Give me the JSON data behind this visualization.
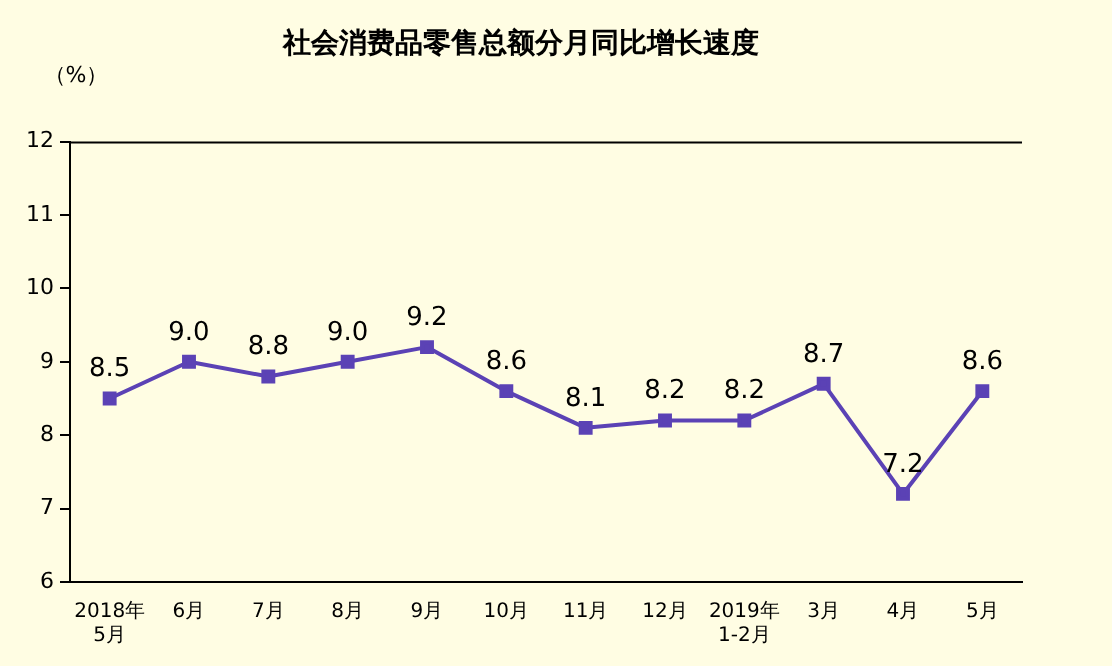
{
  "chart_data": {
    "type": "line",
    "title": "社会消费品零售总额分月同比增长速度",
    "ylabel": "（%）",
    "categories": [
      "2018年\n5月",
      "6月",
      "7月",
      "8月",
      "9月",
      "10月",
      "11月",
      "12月",
      "2019年\n1-2月",
      "3月",
      "4月",
      "5月"
    ],
    "series": [
      {
        "color": "#5b42b5",
        "values": [
          8.5,
          9.0,
          8.8,
          9.0,
          9.2,
          8.6,
          8.1,
          8.2,
          8.2,
          8.7,
          7.2,
          8.6
        ],
        "value_labels": [
          "8.5",
          "9.0",
          "8.8",
          "9.0",
          "9.2",
          "8.6",
          "8.1",
          "8.2",
          "8.2",
          "8.7",
          "7.2",
          "8.6"
        ]
      }
    ],
    "ylim": [
      6,
      12
    ],
    "yticks": [
      6,
      7,
      8,
      9,
      10,
      11,
      12
    ],
    "marker": "square",
    "line_style": "solid",
    "grid": false,
    "legend": false
  }
}
